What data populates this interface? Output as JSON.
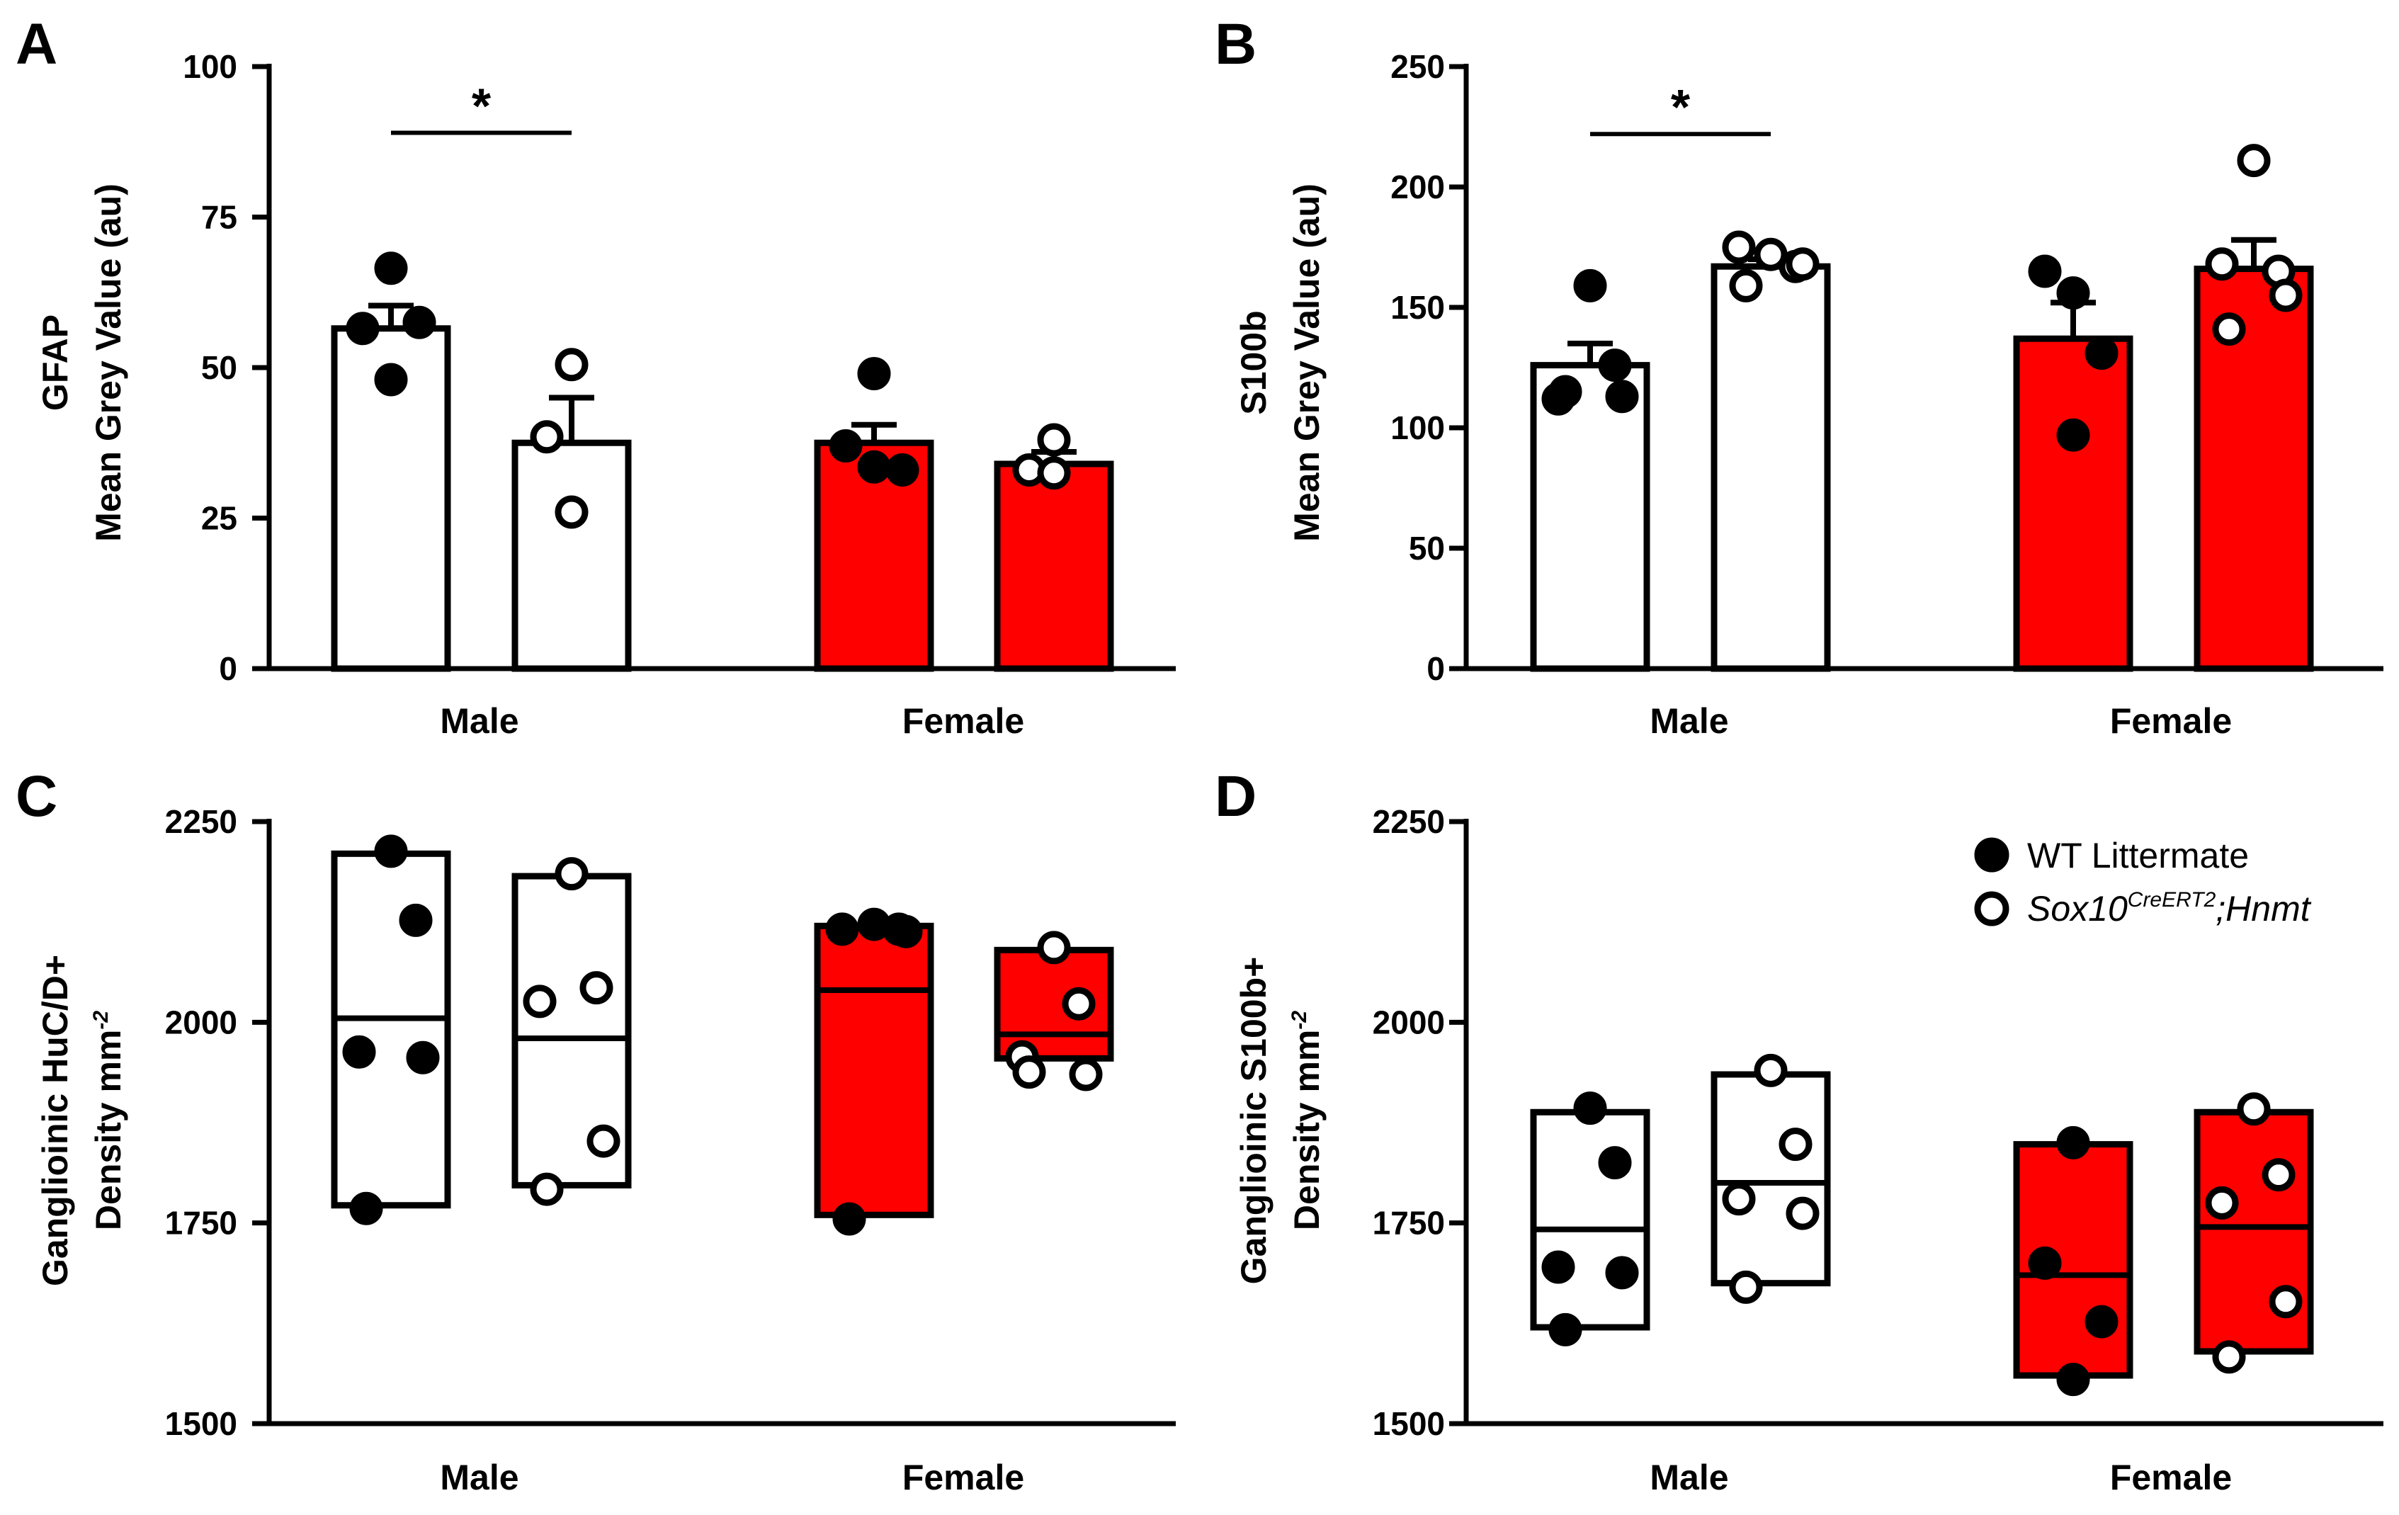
{
  "colors": {
    "wt_fill": "#ffffff",
    "female_fill": "#ff0000",
    "ink": "#000000"
  },
  "groups": [
    "Male",
    "Female"
  ],
  "legend": {
    "wt": "WT Littermate",
    "ko_main": "Sox10",
    "ko_sup": "CreERT2",
    "ko_tail": ";Hnmt"
  },
  "chart_data": [
    {
      "panel": "A",
      "type": "bar",
      "ylabel_line1": "GFAP",
      "ylabel_line2": "Mean Grey Value (au)",
      "ylim": [
        0,
        100
      ],
      "yticks": [
        "0",
        "25",
        "50",
        "75",
        "100"
      ],
      "ytick_values": [
        0,
        25,
        50,
        75,
        100
      ],
      "categories": [
        "Male",
        "Female"
      ],
      "bars": [
        {
          "group": "Male",
          "genotype": "WT Littermate",
          "mean": 56.5,
          "sem": 3.8,
          "points": [
            66.5,
            56.5,
            57.5,
            48.0
          ]
        },
        {
          "group": "Male",
          "genotype": "Sox10CreERT2;Hnmt",
          "mean": 37.5,
          "sem": 7.5,
          "points": [
            50.5,
            38.5,
            26.0
          ]
        },
        {
          "group": "Female",
          "genotype": "WT Littermate",
          "mean": 37.5,
          "sem": 3.0,
          "points": [
            49.0,
            37.0,
            33.0,
            33.5
          ]
        },
        {
          "group": "Female",
          "genotype": "Sox10CreERT2;Hnmt",
          "mean": 34.0,
          "sem": 2.0,
          "points": [
            38.0,
            33.0,
            32.5
          ]
        }
      ],
      "significance": {
        "label": "*",
        "between": [
          0,
          1
        ],
        "y": 89
      }
    },
    {
      "panel": "B",
      "type": "bar",
      "ylabel_line1": "S100b",
      "ylabel_line2": "Mean Grey Value (au)",
      "ylim": [
        0,
        250
      ],
      "yticks": [
        "0",
        "50",
        "100",
        "150",
        "200",
        "250"
      ],
      "ytick_values": [
        0,
        50,
        100,
        150,
        200,
        250
      ],
      "categories": [
        "Male",
        "Female"
      ],
      "bars": [
        {
          "group": "Male",
          "genotype": "WT Littermate",
          "mean": 126,
          "sem": 9,
          "points": [
            159,
            126,
            112,
            113,
            115
          ]
        },
        {
          "group": "Male",
          "genotype": "Sox10CreERT2;Hnmt",
          "mean": 167,
          "sem": 3,
          "points": [
            172,
            167,
            175,
            168,
            159
          ]
        },
        {
          "group": "Female",
          "genotype": "WT Littermate",
          "mean": 137,
          "sem": 15,
          "points": [
            156,
            165,
            131,
            97
          ]
        },
        {
          "group": "Female",
          "genotype": "Sox10CreERT2;Hnmt",
          "mean": 166,
          "sem": 12,
          "points": [
            211,
            165,
            168,
            155,
            141
          ]
        }
      ],
      "significance": {
        "label": "*",
        "between": [
          0,
          1
        ],
        "y": 222
      }
    },
    {
      "panel": "C",
      "type": "box",
      "ylabel_line1": "Ganglioinic HuC/D+",
      "ylabel_line2": "Density mm",
      "ylabel_sup": "-2",
      "ylim": [
        1500,
        2250
      ],
      "yticks": [
        "1500",
        "1750",
        "2000",
        "2250"
      ],
      "ytick_values": [
        1500,
        1750,
        2000,
        2250
      ],
      "categories": [
        "Male",
        "Female"
      ],
      "boxes": [
        {
          "group": "Male",
          "genotype": "WT Littermate",
          "min": 1772,
          "max": 2210,
          "median": 2005,
          "points": [
            2213,
            2127,
            1963,
            1956,
            1768
          ]
        },
        {
          "group": "Male",
          "genotype": "Sox10CreERT2;Hnmt",
          "min": 1797,
          "max": 2182,
          "median": 1980,
          "points": [
            2185,
            2043,
            2026,
            1852,
            1792
          ]
        },
        {
          "group": "Female",
          "genotype": "WT Littermate",
          "min": 1760,
          "max": 2120,
          "median": 2040,
          "points": [
            2122,
            2116,
            2116,
            2113,
            1755
          ]
        },
        {
          "group": "Female",
          "genotype": "Sox10CreERT2;Hnmt",
          "min": 1955,
          "max": 2090,
          "median": 1985,
          "points": [
            2093,
            2023,
            1957,
            1935,
            1938
          ]
        }
      ]
    },
    {
      "panel": "D",
      "type": "box",
      "ylabel_line1": "Ganglioinic S100b+",
      "ylabel_line2": "Density mm",
      "ylabel_sup": "-2",
      "ylim": [
        1500,
        2250
      ],
      "yticks": [
        "1500",
        "1750",
        "2000",
        "2250"
      ],
      "ytick_values": [
        1500,
        1750,
        2000,
        2250
      ],
      "categories": [
        "Male",
        "Female"
      ],
      "legend_position": "top-right",
      "boxes": [
        {
          "group": "Male",
          "genotype": "WT Littermate",
          "min": 1620,
          "max": 1888,
          "median": 1742,
          "points": [
            1893,
            1825,
            1695,
            1688,
            1617
          ]
        },
        {
          "group": "Male",
          "genotype": "Sox10CreERT2;Hnmt",
          "min": 1675,
          "max": 1935,
          "median": 1800,
          "points": [
            1940,
            1848,
            1780,
            1762,
            1670
          ]
        },
        {
          "group": "Female",
          "genotype": "WT Littermate",
          "min": 1560,
          "max": 1848,
          "median": 1685,
          "points": [
            1850,
            1700,
            1627,
            1555
          ]
        },
        {
          "group": "Female",
          "genotype": "Sox10CreERT2;Hnmt",
          "min": 1590,
          "max": 1888,
          "median": 1745,
          "points": [
            1892,
            1810,
            1775,
            1652,
            1583
          ]
        }
      ]
    }
  ]
}
